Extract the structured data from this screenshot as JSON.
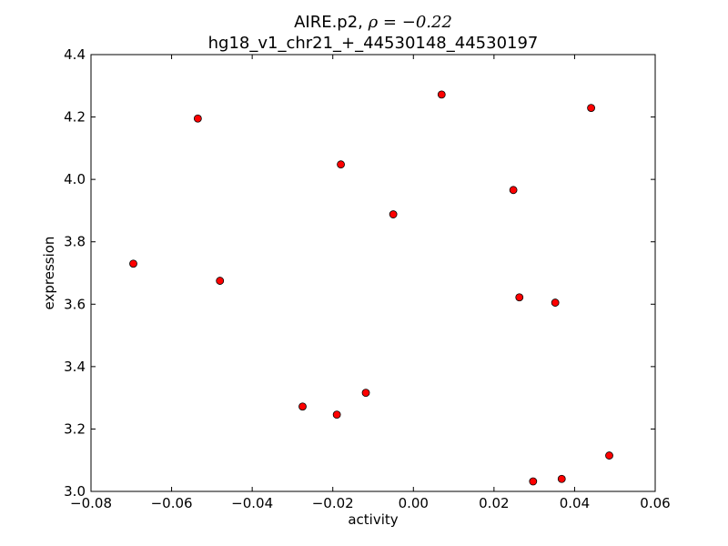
{
  "chart_data": {
    "type": "scatter",
    "title_prefix": "AIRE.p2, ",
    "title_stat": "ρ = −0.22",
    "subtitle": "hg18_v1_chr21_+_44530148_44530197",
    "xlabel": "activity",
    "ylabel": "expression",
    "xlim": [
      -0.08,
      0.06
    ],
    "ylim": [
      3.0,
      4.4
    ],
    "xticks": [
      -0.08,
      -0.06,
      -0.04,
      -0.02,
      0.0,
      0.02,
      0.04,
      0.06
    ],
    "xtick_labels": [
      "−0.08",
      "−0.06",
      "−0.04",
      "−0.02",
      "0.00",
      "0.02",
      "0.04",
      "0.06"
    ],
    "yticks": [
      3.0,
      3.2,
      3.4,
      3.6,
      3.8,
      4.0,
      4.2,
      4.4
    ],
    "ytick_labels": [
      "3.0",
      "3.2",
      "3.4",
      "3.6",
      "3.8",
      "4.0",
      "4.2",
      "4.4"
    ],
    "marker_color": "#ff0000",
    "marker_edge": "#000000",
    "grid": false,
    "points": [
      {
        "x": -0.0695,
        "y": 3.73
      },
      {
        "x": -0.0535,
        "y": 4.195
      },
      {
        "x": -0.048,
        "y": 3.675
      },
      {
        "x": -0.0275,
        "y": 3.272
      },
      {
        "x": -0.019,
        "y": 3.246
      },
      {
        "x": -0.018,
        "y": 4.048
      },
      {
        "x": -0.0118,
        "y": 3.316
      },
      {
        "x": -0.005,
        "y": 3.888
      },
      {
        "x": 0.007,
        "y": 4.272
      },
      {
        "x": 0.0248,
        "y": 3.966
      },
      {
        "x": 0.0263,
        "y": 3.622
      },
      {
        "x": 0.0297,
        "y": 3.032
      },
      {
        "x": 0.0352,
        "y": 3.605
      },
      {
        "x": 0.0368,
        "y": 3.04
      },
      {
        "x": 0.0441,
        "y": 4.229
      },
      {
        "x": 0.0486,
        "y": 3.115
      }
    ]
  }
}
